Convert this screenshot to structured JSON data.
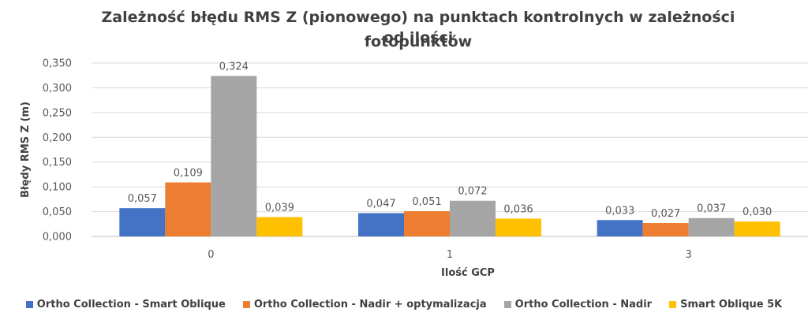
{
  "chart_data": {
    "type": "bar",
    "title": "Zależność błędu RMS Z (pionowego) na punktach kontrolnych w zależności od ilości fotopunktów",
    "title_lines": [
      "Zależność błędu RMS Z (pionowego) na punktach kontrolnych w zależności od ilości",
      "fotopunktów"
    ],
    "xlabel": "Ilość GCP",
    "ylabel": "Błędy RMS Z (m)",
    "categories": [
      "0",
      "1",
      "3"
    ],
    "ylim": [
      0,
      0.35
    ],
    "yticks": [
      0,
      0.05,
      0.1,
      0.15,
      0.2,
      0.25,
      0.3,
      0.35
    ],
    "ytick_labels": [
      "0,000",
      "0,050",
      "0,100",
      "0,150",
      "0,200",
      "0,250",
      "0,300",
      "0,350"
    ],
    "grid": true,
    "legend_position": "bottom",
    "series": [
      {
        "name": "Ortho Collection - Smart Oblique",
        "color": "#4472C4",
        "values": [
          0.057,
          0.047,
          0.033
        ],
        "labels": [
          "0,057",
          "0,047",
          "0,033"
        ]
      },
      {
        "name": "Ortho Collection - Nadir + optymalizacja",
        "color": "#ED7D31",
        "values": [
          0.109,
          0.051,
          0.027
        ],
        "labels": [
          "0,109",
          "0,051",
          "0,027"
        ]
      },
      {
        "name": "Ortho Collection - Nadir",
        "color": "#A5A5A5",
        "values": [
          0.324,
          0.072,
          0.037
        ],
        "labels": [
          "0,324",
          "0,072",
          "0,037"
        ]
      },
      {
        "name": "Smart Oblique 5K",
        "color": "#FFC000",
        "values": [
          0.039,
          0.036,
          0.03
        ],
        "labels": [
          "0,039",
          "0,036",
          "0,030"
        ]
      }
    ]
  }
}
